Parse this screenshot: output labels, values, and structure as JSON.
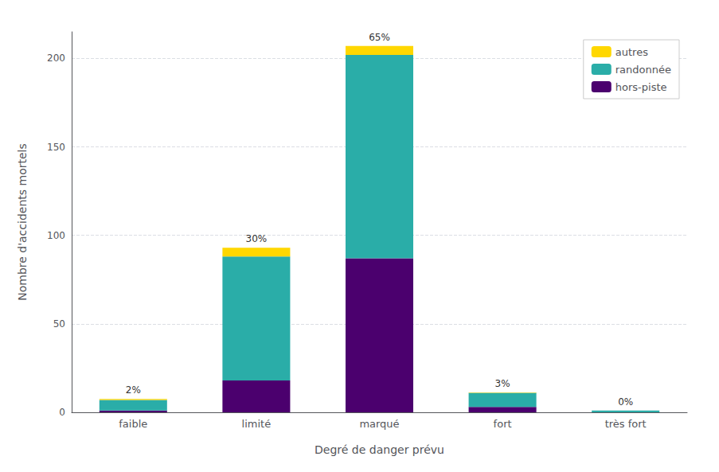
{
  "chart_data": {
    "type": "bar",
    "stacked": true,
    "xlabel": "Degré de danger prévu",
    "ylabel": "Nombre d'accidents mortels",
    "categories": [
      "faible",
      "limité",
      "marqué",
      "fort",
      "très fort"
    ],
    "series": [
      {
        "name": "hors-piste",
        "color": "#4B006E",
        "values": [
          1,
          18,
          87,
          3,
          0
        ]
      },
      {
        "name": "randonnée",
        "color": "#2AADA8",
        "values": [
          6,
          70,
          115,
          8,
          1
        ]
      },
      {
        "name": "autres",
        "color": "#FFD700",
        "values": [
          0.5,
          5,
          5,
          0.3,
          0
        ]
      }
    ],
    "annotations": [
      "2%",
      "30%",
      "65%",
      "3%",
      "0%"
    ],
    "ylim": [
      0,
      215
    ],
    "yticks": [
      0,
      50,
      100,
      150,
      200
    ],
    "grid": true,
    "legend": "upper right"
  }
}
